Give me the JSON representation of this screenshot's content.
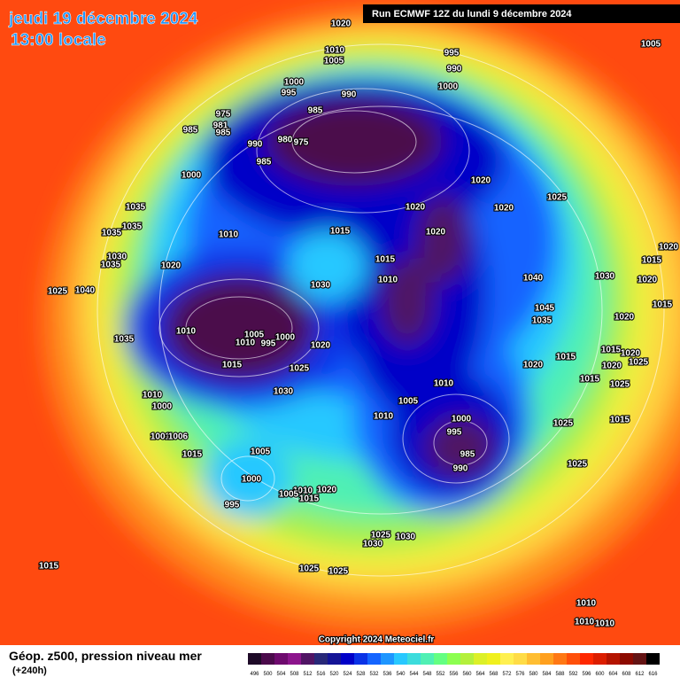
{
  "header": {
    "date": "jeudi 19 décembre 2024",
    "time": "13:00 locale",
    "run": "Run ECMWF 12Z du lundi 9 décembre 2024"
  },
  "copyright": "Copyright 2024 Meteociel.fr",
  "legend": {
    "title": "Géop. z500, pression niveau mer",
    "subtitle": "(+240h)",
    "values": [
      496,
      500,
      504,
      508,
      512,
      516,
      520,
      524,
      528,
      532,
      536,
      540,
      544,
      548,
      552,
      556,
      560,
      564,
      568,
      572,
      576,
      580,
      584,
      588,
      592,
      596,
      600,
      604,
      608,
      612,
      616
    ],
    "colors": [
      "#1e0a28",
      "#4b0a4b",
      "#6e0a6e",
      "#8c148c",
      "#501464",
      "#282878",
      "#141496",
      "#0000c8",
      "#0a32e6",
      "#1464ff",
      "#1e96ff",
      "#28c8ff",
      "#3cdcdc",
      "#50f0b4",
      "#64ff82",
      "#8cff50",
      "#b4f03c",
      "#dcf028",
      "#f0f01e",
      "#fff050",
      "#ffdc46",
      "#ffbe32",
      "#ffa01e",
      "#ff7814",
      "#ff500a",
      "#ff2800",
      "#dc1e00",
      "#b41400",
      "#8c0a00",
      "#641414",
      "#000000"
    ]
  },
  "isobar_labels": [
    "1020",
    "1005",
    "1010",
    "1005",
    "995",
    "990",
    "1000",
    "995",
    "990",
    "1000",
    "975",
    "985",
    "985",
    "981",
    "985",
    "990",
    "980",
    "975",
    "985",
    "1000",
    "1020",
    "1025",
    "1035",
    "1020",
    "1020",
    "1035",
    "1035",
    "1010",
    "1015",
    "1020",
    "1020",
    "1030",
    "1035",
    "1020",
    "1015",
    "1030",
    "1040",
    "1015",
    "1020",
    "1030",
    "1010",
    "1025",
    "1040",
    "1045",
    "1035",
    "1015",
    "1020",
    "1010",
    "1005",
    "1000",
    "1010",
    "995",
    "1035",
    "1020",
    "1015",
    "1020",
    "1015",
    "1025",
    "1015",
    "1025",
    "1020",
    "1020",
    "1015",
    "1025",
    "1030",
    "1010",
    "1010",
    "1005",
    "1000",
    "1000",
    "1010",
    "995",
    "1025",
    "1015",
    "1001",
    "1006",
    "985",
    "990",
    "1015",
    "1005",
    "1025",
    "1000",
    "1020",
    "1010",
    "1005",
    "1015",
    "995",
    "1025",
    "1030",
    "1030",
    "1015",
    "1025",
    "1025",
    "1010",
    "1010",
    "1010"
  ]
}
